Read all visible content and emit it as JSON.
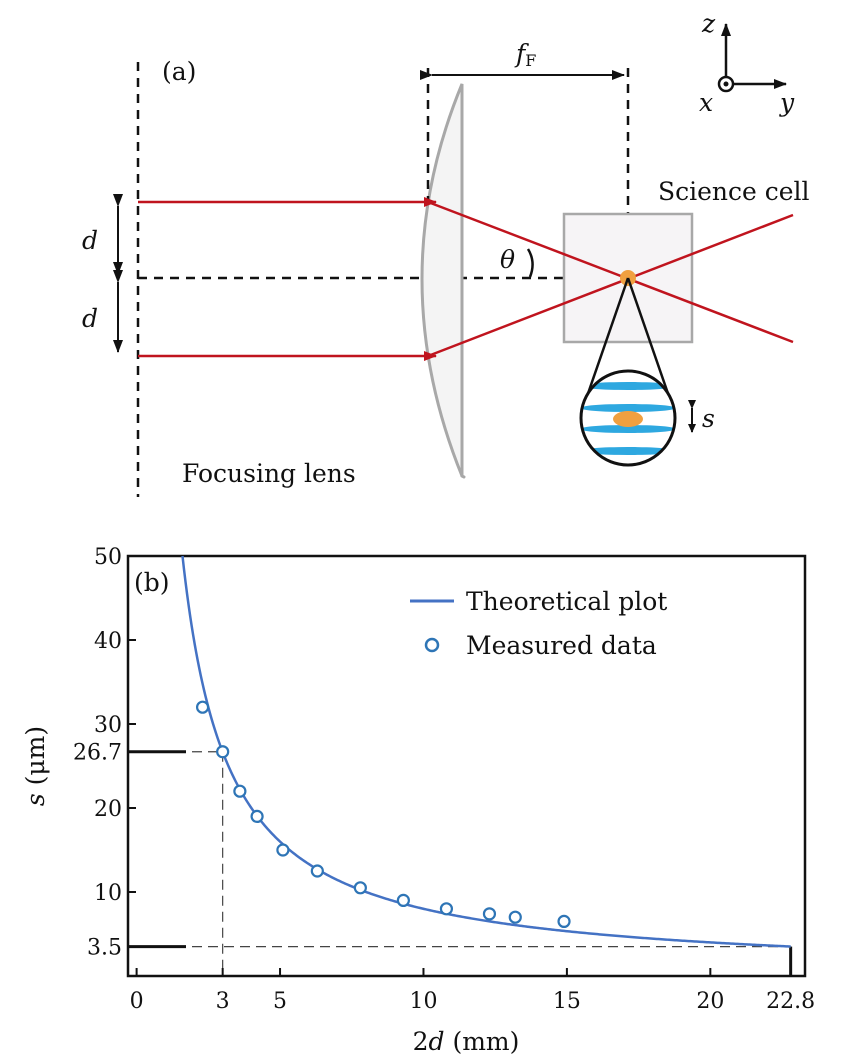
{
  "panel_a": {
    "panel_label": "(a)",
    "focal_label_main": "f",
    "focal_label_sub": "F",
    "axes": {
      "z": "z",
      "x": "x",
      "y": "y"
    },
    "science_cell_label": "Science cell",
    "theta_label": "θ",
    "d_label_upper": "d",
    "d_label_lower": "d",
    "s_label": "s",
    "focusing_lens_label": "Focusing lens",
    "colors": {
      "beam": "#c0141e",
      "atom": "#f0a040",
      "lattice": "#2ea8e0",
      "lens_fill": "#f4f4f4",
      "lens_stroke": "#a8a8a8"
    }
  },
  "chart_data": {
    "type": "scatter",
    "panel_label": "(b)",
    "xlabel": "2d (mm)",
    "ylabel": "s (μm)",
    "xlim": [
      -0.3,
      23.3
    ],
    "ylim": [
      0,
      50
    ],
    "x_ticks": [
      0,
      3,
      5,
      10,
      15,
      20,
      22.8
    ],
    "x_tick_labels": [
      "0",
      "3",
      "5",
      "10",
      "15",
      "20",
      "22.8"
    ],
    "y_ticks": [
      3.5,
      10,
      20,
      26.7,
      30,
      40,
      50
    ],
    "y_tick_labels": [
      "3.5",
      "10",
      "20",
      "26.7",
      "30",
      "40",
      "50"
    ],
    "legend_position": "top-right",
    "grid": false,
    "series": [
      {
        "name": "Theoretical plot",
        "kind": "line",
        "color": "#4472c4",
        "model": "s = 80 / (2d)",
        "x_range": [
          1.6,
          22.8
        ]
      },
      {
        "name": "Measured data",
        "kind": "points",
        "color": "#2e75b6",
        "x": [
          2.3,
          3.0,
          3.6,
          4.2,
          5.1,
          6.3,
          7.8,
          9.3,
          10.8,
          12.3,
          13.2,
          14.9
        ],
        "y": [
          32.0,
          26.7,
          22.0,
          19.0,
          15.0,
          12.5,
          10.5,
          9.0,
          8.0,
          7.4,
          7.0,
          6.5
        ]
      }
    ],
    "guides": [
      {
        "x": 3.0,
        "y": 26.7
      },
      {
        "x": 22.8,
        "y": 3.5
      }
    ]
  }
}
